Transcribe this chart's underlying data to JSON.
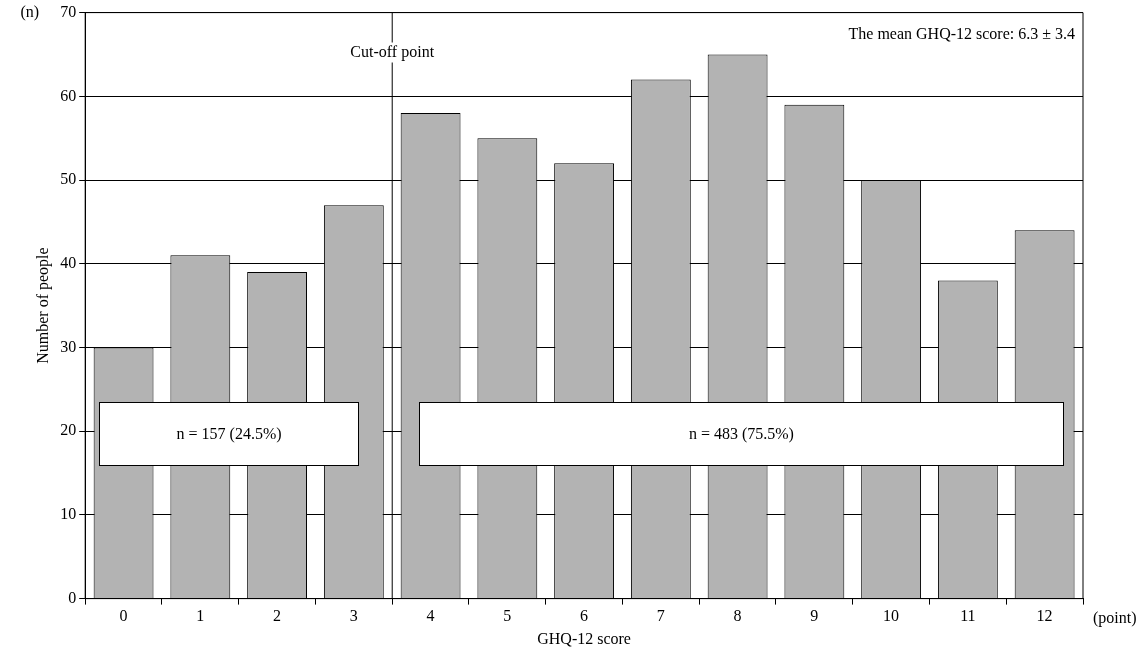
{
  "chart_data": {
    "type": "bar",
    "xlabel": "GHQ-12 score",
    "ylabel": "Number of people",
    "x": [
      0,
      1,
      2,
      3,
      4,
      5,
      6,
      7,
      8,
      9,
      10,
      11,
      12
    ],
    "values": [
      30,
      41,
      39,
      47,
      58,
      55,
      52,
      62,
      65,
      59,
      50,
      38,
      44
    ],
    "color": "#b3b3b3",
    "xlim": [
      -0.5,
      12.5
    ],
    "xticks": [
      0,
      1,
      2,
      3,
      4,
      5,
      6,
      7,
      8,
      9,
      10,
      11,
      12
    ],
    "ylim": [
      0,
      70
    ],
    "yticks": [
      0,
      10,
      20,
      30,
      40,
      50,
      60,
      70
    ],
    "grid": "y",
    "legend": false,
    "ref_lines": [
      {
        "axis": "x",
        "value": 3.5,
        "label": "Cut-off point"
      }
    ],
    "annotations": [
      "The mean GHQ-12 score: 6.3 ± 3.4",
      "n = 157 (24.5%)",
      "n = 483 (75.5%)",
      "(n)",
      "(point)"
    ]
  }
}
